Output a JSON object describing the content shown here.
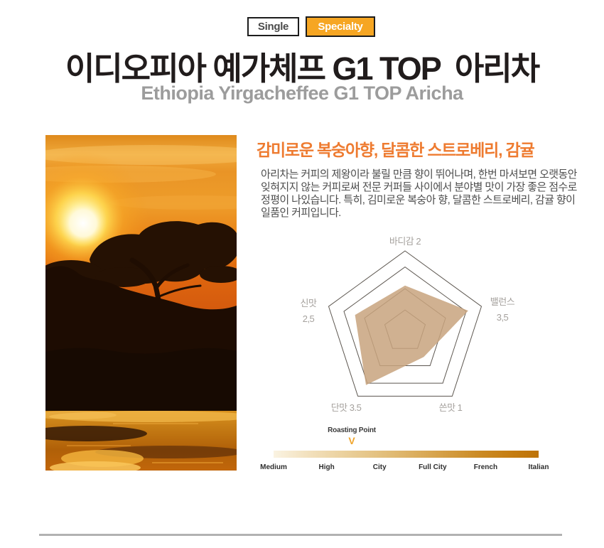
{
  "badges": {
    "single": "Single",
    "specialty": "Specialty",
    "specialty_color": "#f6a623"
  },
  "header": {
    "title": "이디오피아 예가체프 G1 TOP  아리차",
    "subtitle": "Ethiopia Yirgacheffee G1 TOP Aricha"
  },
  "description": {
    "headline": "감미로운 복숭아향, 달콤한 스트로베리, 감귤",
    "body": "아리차는 커피의 제왕이라 불릴 만큼 향이 뛰어나며, 한번 마셔보면 오랫동안 잊혀지지 않는 커피로써 전문 커퍼들 사이에서 분야별 맛이 가장 좋은 점수로 정평이 나있습니다. 특히, 김미로운 복숭아 향, 달콤한 스트로베리, 감귤 향이 일품인 커피입니다."
  },
  "chart_data": {
    "type": "radar",
    "categories": [
      "바디감",
      "밸런스",
      "쓴맛",
      "단맛",
      "신맛"
    ],
    "values": [
      2,
      3.5,
      1,
      3.5,
      2.5
    ],
    "max": 5,
    "rings": 4,
    "fill_color": "#c8a37e",
    "ring_color": "#5c564f",
    "legend": "none",
    "labels": {
      "top": "바디감 2",
      "right_name": "밸런스",
      "right_value": "3,5",
      "bottom_right": "쓴맛 1",
      "bottom_left": "단맛 3.5",
      "left_name": "신맛",
      "left_value": "2,5"
    }
  },
  "roasting": {
    "label": "Roasting Point",
    "marker": "V",
    "marker_color": "#f0a52c",
    "marker_position_percent": 29.5,
    "levels": [
      "Medium",
      "High",
      "City",
      "Full City",
      "French",
      "Italian"
    ]
  }
}
